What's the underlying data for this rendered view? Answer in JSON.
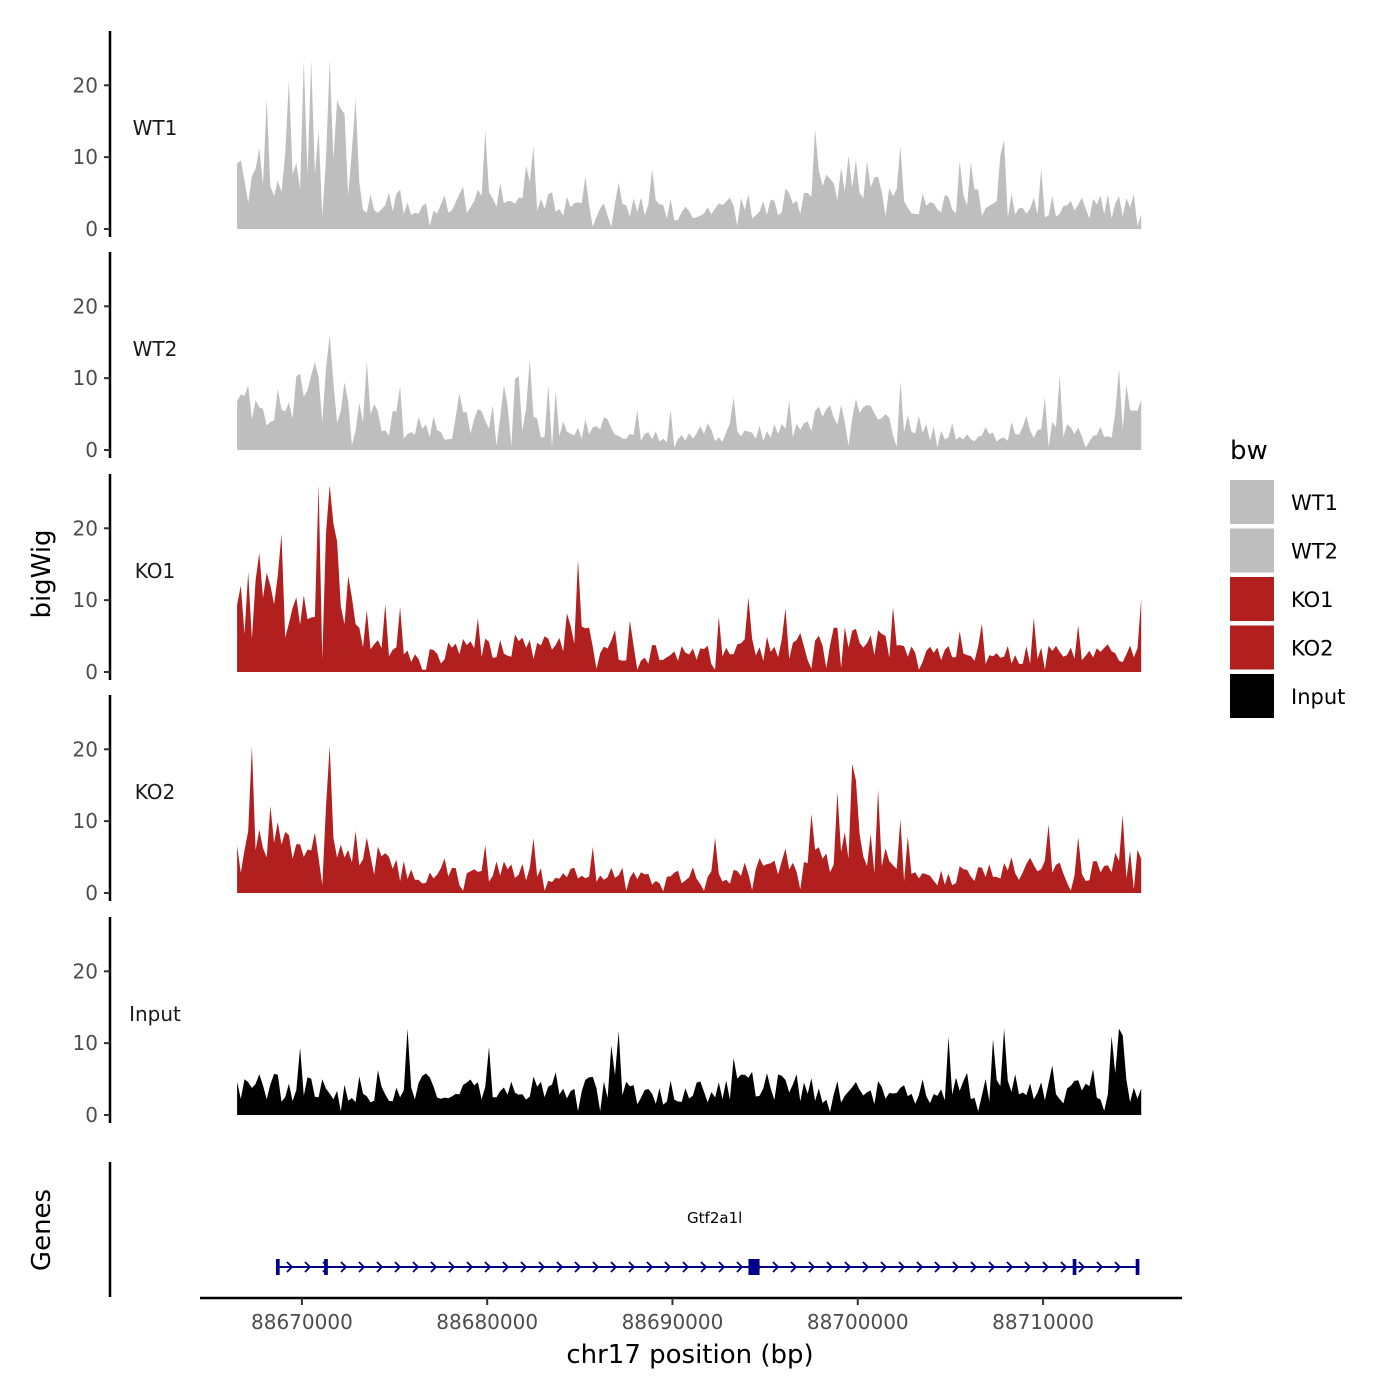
{
  "chart_data": {
    "type": "area",
    "chromosome": "chr17",
    "region": [
      88666500,
      88715300
    ],
    "xlim": [
      88664500,
      88717500
    ],
    "ylim": [
      0,
      27
    ],
    "y_ticks": [
      0,
      10,
      20
    ],
    "x_ticks": [
      88670000,
      88680000,
      88690000,
      88700000,
      88710000
    ],
    "x_tick_labels": [
      "88670000",
      "88680000",
      "88690000",
      "88700000",
      "88710000"
    ],
    "xlabel": "chr17 position (bp)",
    "ylabel": "bigWig",
    "genes_label": "Genes",
    "legend_title": "bw",
    "series": [
      {
        "name": "WT1",
        "color": "#BEBEBE",
        "peak": 23.5,
        "anchors": [
          [
            88666500,
            10
          ],
          [
            88668000,
            9
          ],
          [
            88669500,
            11
          ],
          [
            88670500,
            16
          ],
          [
            88671500,
            19
          ],
          [
            88672500,
            12
          ],
          [
            88673500,
            5
          ],
          [
            88675000,
            5
          ],
          [
            88677000,
            4
          ],
          [
            88679000,
            5
          ],
          [
            88681000,
            6
          ],
          [
            88683000,
            5
          ],
          [
            88685000,
            3
          ],
          [
            88687000,
            3
          ],
          [
            88689000,
            4
          ],
          [
            88691000,
            3
          ],
          [
            88693000,
            4
          ],
          [
            88695000,
            4
          ],
          [
            88697000,
            5
          ],
          [
            88698500,
            8
          ],
          [
            88699500,
            10
          ],
          [
            88700500,
            9
          ],
          [
            88701500,
            5
          ],
          [
            88703000,
            4
          ],
          [
            88705000,
            4
          ],
          [
            88707000,
            5
          ],
          [
            88709000,
            4
          ],
          [
            88711000,
            4
          ],
          [
            88713000,
            4
          ],
          [
            88715300,
            4
          ]
        ]
      },
      {
        "name": "WT2",
        "color": "#BEBEBE",
        "peak": 16.0,
        "anchors": [
          [
            88666500,
            7
          ],
          [
            88668000,
            8
          ],
          [
            88669500,
            8
          ],
          [
            88670500,
            10
          ],
          [
            88671500,
            11
          ],
          [
            88672500,
            7
          ],
          [
            88674000,
            5
          ],
          [
            88676000,
            4
          ],
          [
            88678000,
            4
          ],
          [
            88680000,
            6
          ],
          [
            88682000,
            5
          ],
          [
            88684000,
            4
          ],
          [
            88686000,
            4
          ],
          [
            88688000,
            3
          ],
          [
            88690000,
            3
          ],
          [
            88692000,
            3
          ],
          [
            88694000,
            3
          ],
          [
            88696000,
            3
          ],
          [
            88698000,
            5
          ],
          [
            88699500,
            6
          ],
          [
            88701000,
            5
          ],
          [
            88703000,
            4
          ],
          [
            88705000,
            3
          ],
          [
            88707000,
            3
          ],
          [
            88709000,
            4
          ],
          [
            88711000,
            4
          ],
          [
            88713000,
            3
          ],
          [
            88715300,
            6
          ]
        ]
      },
      {
        "name": "KO1",
        "color": "#B21F1F",
        "peak": 26.0,
        "anchors": [
          [
            88666500,
            9
          ],
          [
            88667500,
            14
          ],
          [
            88668500,
            13
          ],
          [
            88669500,
            10
          ],
          [
            88670500,
            16
          ],
          [
            88671500,
            19
          ],
          [
            88672500,
            14
          ],
          [
            88673500,
            7
          ],
          [
            88674500,
            5
          ],
          [
            88675500,
            3
          ],
          [
            88677000,
            3
          ],
          [
            88679000,
            4
          ],
          [
            88681000,
            5
          ],
          [
            88683000,
            4
          ],
          [
            88684500,
            7
          ],
          [
            88686000,
            4
          ],
          [
            88688000,
            3
          ],
          [
            88690000,
            3
          ],
          [
            88692000,
            3
          ],
          [
            88694000,
            4
          ],
          [
            88696000,
            4
          ],
          [
            88698000,
            5
          ],
          [
            88699500,
            6
          ],
          [
            88701000,
            5
          ],
          [
            88703000,
            3
          ],
          [
            88705000,
            3
          ],
          [
            88707000,
            3
          ],
          [
            88709000,
            3
          ],
          [
            88711000,
            3
          ],
          [
            88713000,
            3
          ],
          [
            88715300,
            4
          ]
        ]
      },
      {
        "name": "KO2",
        "color": "#B21F1F",
        "peak": 20.5,
        "anchors": [
          [
            88666500,
            6
          ],
          [
            88667500,
            9
          ],
          [
            88668500,
            10
          ],
          [
            88669500,
            7
          ],
          [
            88670500,
            8
          ],
          [
            88671500,
            13
          ],
          [
            88672500,
            10
          ],
          [
            88673500,
            7
          ],
          [
            88675000,
            5
          ],
          [
            88677000,
            3
          ],
          [
            88679000,
            3
          ],
          [
            88681000,
            4
          ],
          [
            88683000,
            3
          ],
          [
            88685000,
            3
          ],
          [
            88687000,
            3
          ],
          [
            88689000,
            2
          ],
          [
            88691000,
            3
          ],
          [
            88693000,
            3
          ],
          [
            88695000,
            5
          ],
          [
            88697000,
            5
          ],
          [
            88699000,
            7
          ],
          [
            88700500,
            7
          ],
          [
            88702000,
            4
          ],
          [
            88704000,
            3
          ],
          [
            88706000,
            3
          ],
          [
            88708000,
            4
          ],
          [
            88710000,
            4
          ],
          [
            88712000,
            3
          ],
          [
            88714000,
            5
          ],
          [
            88715300,
            5
          ]
        ]
      },
      {
        "name": "Input",
        "color": "#000000",
        "peak": 12.0,
        "anchors": [
          [
            88666500,
            4
          ],
          [
            88668000,
            5
          ],
          [
            88670000,
            5
          ],
          [
            88672000,
            5
          ],
          [
            88674000,
            5
          ],
          [
            88676000,
            5
          ],
          [
            88678000,
            4
          ],
          [
            88680000,
            4
          ],
          [
            88682000,
            5
          ],
          [
            88684000,
            5
          ],
          [
            88686000,
            5
          ],
          [
            88688000,
            4
          ],
          [
            88690000,
            4
          ],
          [
            88692000,
            4
          ],
          [
            88694000,
            5
          ],
          [
            88696000,
            5
          ],
          [
            88698000,
            4
          ],
          [
            88700000,
            4
          ],
          [
            88702000,
            4
          ],
          [
            88704000,
            4
          ],
          [
            88706000,
            5
          ],
          [
            88708000,
            5
          ],
          [
            88710000,
            4
          ],
          [
            88712000,
            5
          ],
          [
            88714000,
            6
          ],
          [
            88715300,
            4
          ]
        ]
      }
    ],
    "genes": [
      {
        "name": "Gtf2a1l",
        "strand": "+",
        "start": 88668600,
        "end": 88715200,
        "color": "#00008B",
        "exons": [
          [
            88668600,
            88668800
          ],
          [
            88671200,
            88671400
          ],
          [
            88694100,
            88694700
          ],
          [
            88711600,
            88711800
          ],
          [
            88715000,
            88715200
          ]
        ]
      }
    ]
  }
}
